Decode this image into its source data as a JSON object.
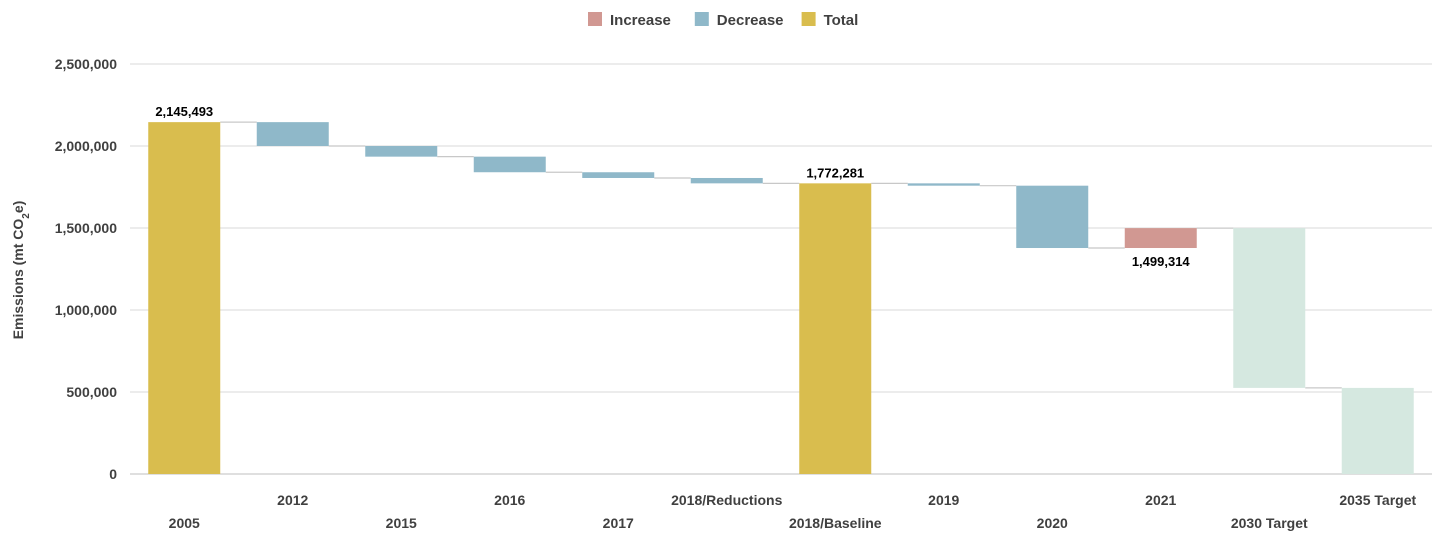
{
  "chart_data": {
    "type": "bar",
    "subtype": "waterfall",
    "legend": {
      "placement": "top-center",
      "items": [
        {
          "label": "Increase",
          "color": "#d19892"
        },
        {
          "label": "Decrease",
          "color": "#8fb8c9"
        },
        {
          "label": "Total",
          "color": "#d9bd4e"
        }
      ]
    },
    "ylabel_prefix": "Emissions (mt CO",
    "ylabel_sub": "2",
    "ylabel_suffix": "e)",
    "xlabel": "",
    "ylim": [
      0,
      2500000
    ],
    "yticks": [
      0,
      500000,
      1000000,
      1500000,
      2000000,
      2500000
    ],
    "ytick_labels": [
      "0",
      "500,000",
      "1,000,000",
      "1,500,000",
      "2,000,000",
      "2,500,000"
    ],
    "grid": true,
    "bars": [
      {
        "category": "2005",
        "kind": "total",
        "start": 0,
        "end": 2145493,
        "label": "2,145,493",
        "label_pos": "above"
      },
      {
        "category": "2012",
        "kind": "decrease",
        "start": 2145493,
        "end": 2000000
      },
      {
        "category": "2015",
        "kind": "decrease",
        "start": 2000000,
        "end": 1935000
      },
      {
        "category": "2016",
        "kind": "decrease",
        "start": 1935000,
        "end": 1840000
      },
      {
        "category": "2017",
        "kind": "decrease",
        "start": 1840000,
        "end": 1805000
      },
      {
        "category": "2018/Reductions",
        "kind": "decrease",
        "start": 1805000,
        "end": 1772281
      },
      {
        "category": "2018/Baseline",
        "kind": "total",
        "start": 0,
        "end": 1772281,
        "label": "1,772,281",
        "label_pos": "above"
      },
      {
        "category": "2019",
        "kind": "decrease",
        "start": 1772281,
        "end": 1758000
      },
      {
        "category": "2020",
        "kind": "decrease",
        "start": 1758000,
        "end": 1378000
      },
      {
        "category": "2021",
        "kind": "increase",
        "start": 1378000,
        "end": 1499314,
        "label": "1,499,314",
        "label_pos": "below"
      },
      {
        "category": "2030 Target",
        "kind": "target",
        "start": 1499314,
        "end": 525000,
        "color": "#d5e8e0"
      },
      {
        "category": "2035 Target",
        "kind": "target",
        "start": 0,
        "end": 525000,
        "color": "#d5e8e0"
      }
    ]
  }
}
